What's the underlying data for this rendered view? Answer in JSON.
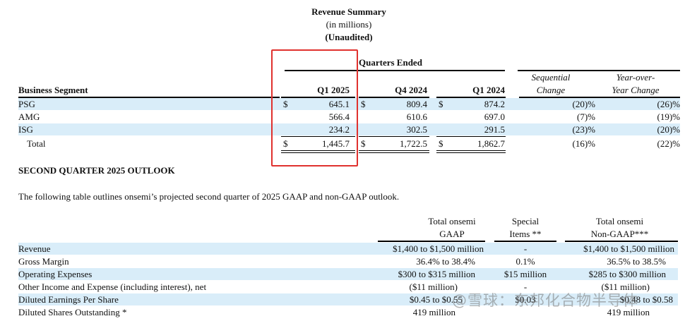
{
  "revenue_summary": {
    "title": "Revenue Summary",
    "subtitle": "(in millions)",
    "unaudited": "(Unaudited)",
    "quarters_ended": "Quarters Ended",
    "headers": {
      "segment": "Business Segment",
      "q1_2025": "Q1 2025",
      "q4_2024": "Q4 2024",
      "q1_2024": "Q1 2024",
      "seq_line1": "Sequential",
      "seq_line2": "Change",
      "yoy_line1": "Year-over-",
      "yoy_line2": "Year Change"
    },
    "currency": "$",
    "rows": [
      {
        "segment": "PSG",
        "q1_2025": "645.1",
        "q4_2024": "809.4",
        "q1_2024": "874.2",
        "seq": "(20)%",
        "yoy": "(26)%"
      },
      {
        "segment": "AMG",
        "q1_2025": "566.4",
        "q4_2024": "610.6",
        "q1_2024": "697.0",
        "seq": "(7)%",
        "yoy": "(19)%"
      },
      {
        "segment": "ISG",
        "q1_2025": "234.2",
        "q4_2024": "302.5",
        "q1_2024": "291.5",
        "seq": "(23)%",
        "yoy": "(20)%"
      }
    ],
    "total": {
      "segment": "Total",
      "q1_2025": "1,445.7",
      "q4_2024": "1,722.5",
      "q1_2024": "1,862.7",
      "seq": "(16)%",
      "yoy": "(22)%"
    }
  },
  "outlook": {
    "heading": "SECOND QUARTER 2025 OUTLOOK",
    "intro": "The following table outlines onsemi’s projected second quarter of 2025 GAAP and non-GAAP outlook.",
    "headers": {
      "gaap_line1": "Total onsemi",
      "gaap_line2": "GAAP",
      "special_line1": "Special",
      "special_line2": "Items **",
      "nongaap_line1": "Total onsemi",
      "nongaap_line2": "Non-GAAP***"
    },
    "rows": [
      {
        "label": "Revenue",
        "gaap": "$1,400 to $1,500 million",
        "special": "-",
        "nongaap": "$1,400 to $1,500 million"
      },
      {
        "label": "Gross Margin",
        "gaap": "36.4% to 38.4%",
        "special": "0.1%",
        "nongaap": "36.5% to 38.5%"
      },
      {
        "label": "Operating Expenses",
        "gaap": "$300 to $315 million",
        "special": "$15 million",
        "nongaap": "$285 to $300 million"
      },
      {
        "label": "Other Income and Expense (including interest), net",
        "gaap": "($11 million)",
        "special": "-",
        "nongaap": "($11 million)"
      },
      {
        "label": "Diluted Earnings Per Share",
        "gaap": "$0.45 to $0.55",
        "special": "$0.03",
        "nongaap": "$0.48 to $0.58"
      },
      {
        "label": "Diluted Shares Outstanding *",
        "gaap": "419 million",
        "special": "",
        "nongaap": "419 million"
      }
    ]
  },
  "watermark": "@雪球：东邦化合物半导体"
}
